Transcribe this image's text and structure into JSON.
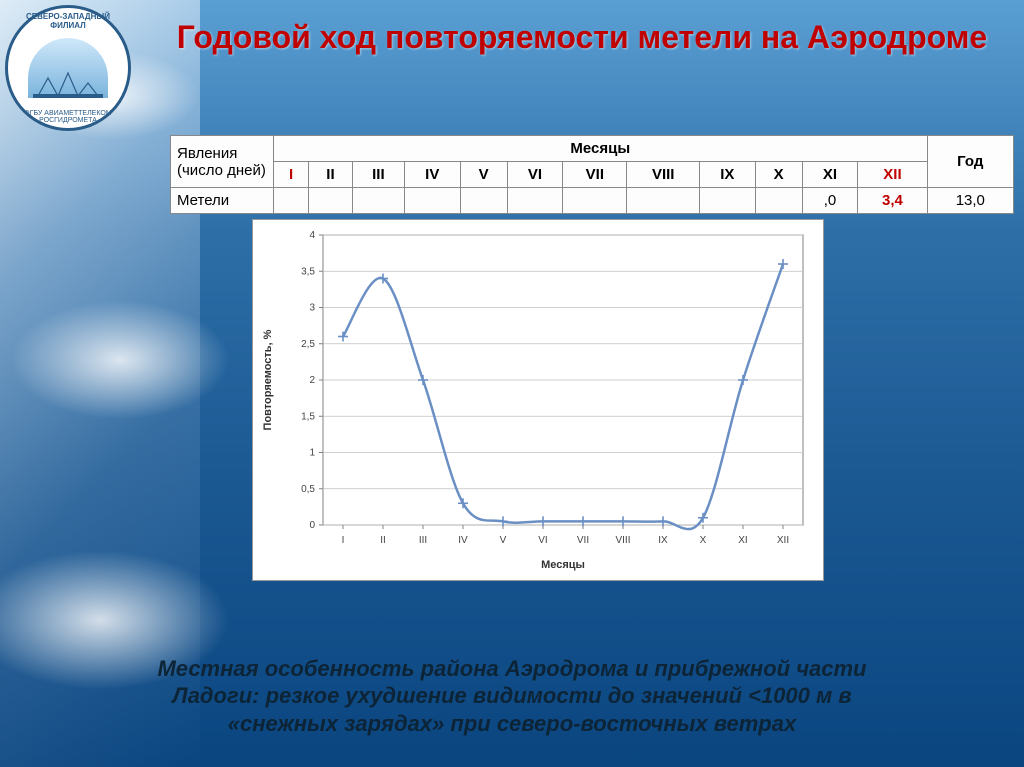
{
  "title": "Годовой ход повторяемости метели на Аэродроме",
  "logo": {
    "top_arc": "СЕВЕРО-ЗАПАДНЫЙ ФИЛИАЛ",
    "bottom_arc": "ФГБУ АВИАМЕТТЕЛЕКОМ РОСГИДРОМЕТА"
  },
  "table": {
    "row_header_combined": "Явления (число дней)",
    "months_header": "Месяцы",
    "year_header": "Год",
    "months": [
      "I",
      "II",
      "III",
      "IV",
      "V",
      "VI",
      "VII",
      "VIII",
      "IX",
      "X",
      "XI",
      "XII"
    ],
    "highlight_months": {
      "I": true,
      "XII": true
    },
    "row_label": "Метели",
    "visible_tail_values": {
      "xi_partial": ",0",
      "xii": "3,4",
      "year": "13,0"
    }
  },
  "chart": {
    "type": "line",
    "x_categories": [
      "I",
      "II",
      "III",
      "IV",
      "V",
      "VI",
      "VII",
      "VIII",
      "IX",
      "X",
      "XI",
      "XII"
    ],
    "values": [
      2.6,
      3.4,
      2.0,
      0.3,
      0.05,
      0.05,
      0.05,
      0.05,
      0.05,
      0.1,
      2.0,
      3.6
    ],
    "ylabel": "Повторяемость, %",
    "xlabel": "Месяцы",
    "ylim": [
      0,
      4
    ],
    "ytick_step": 0.5,
    "ytick_labels": [
      "0",
      "0,5",
      "1",
      "1,5",
      "2",
      "2,5",
      "3",
      "3,5",
      "4"
    ],
    "line_color": "#6a8fc4",
    "line_width": 2.5,
    "marker_style": "plus",
    "marker_color": "#6a8fc4",
    "marker_size": 5,
    "grid_color": "#bfbfbf",
    "background_color": "#ffffff",
    "axis_label_fontsize": 11,
    "tick_fontsize": 10,
    "smooth": true
  },
  "footer": "Местная особенность района Аэродрома и прибрежной части Ладоги: резкое ухудшение видимости до значений <1000 м в «снежных зарядах» при северо-восточных ветрах"
}
